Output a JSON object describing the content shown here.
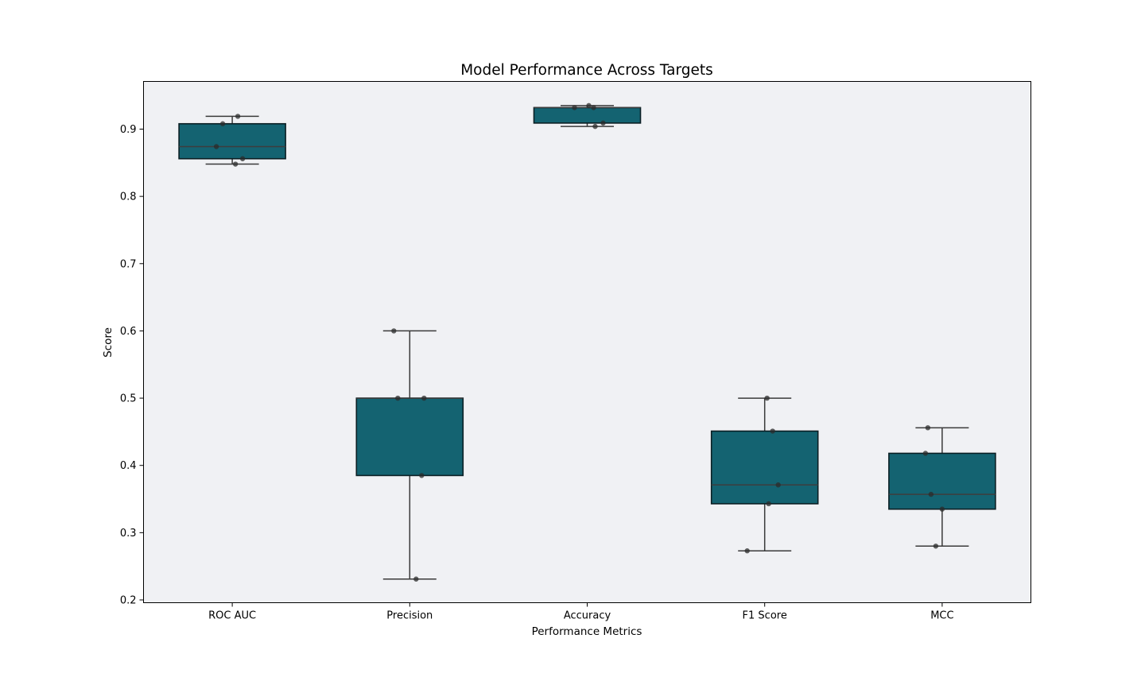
{
  "chart_data": {
    "type": "box",
    "title": "Model Performance Across Targets",
    "xlabel": "Performance Metrics",
    "ylabel": "Score",
    "ylim": [
      0.195,
      0.97
    ],
    "yticks": [
      "0.2",
      "0.3",
      "0.4",
      "0.5",
      "0.6",
      "0.7",
      "0.8",
      "0.9"
    ],
    "grid": false,
    "categories": [
      "ROC AUC",
      "Precision",
      "Accuracy",
      "F1 Score",
      "MCC"
    ],
    "boxes": [
      {
        "name": "ROC AUC",
        "whisker_low": 0.848,
        "q1": 0.856,
        "median": 0.874,
        "q3": 0.908,
        "whisker_high": 0.919,
        "points": [
          0.919,
          0.908,
          0.874,
          0.856,
          0.848
        ]
      },
      {
        "name": "Precision",
        "whisker_low": 0.231,
        "q1": 0.385,
        "median": 0.5,
        "q3": 0.5,
        "whisker_high": 0.6,
        "points": [
          0.6,
          0.5,
          0.5,
          0.385,
          0.231
        ]
      },
      {
        "name": "Accuracy",
        "whisker_low": 0.904,
        "q1": 0.909,
        "median": 0.932,
        "q3": 0.932,
        "whisker_high": 0.935,
        "points": [
          0.935,
          0.932,
          0.932,
          0.909,
          0.904
        ]
      },
      {
        "name": "F1 Score",
        "whisker_low": 0.273,
        "q1": 0.343,
        "median": 0.371,
        "q3": 0.451,
        "whisker_high": 0.5,
        "points": [
          0.5,
          0.451,
          0.371,
          0.343,
          0.273
        ]
      },
      {
        "name": "MCC",
        "whisker_low": 0.28,
        "q1": 0.335,
        "median": 0.357,
        "q3": 0.418,
        "whisker_high": 0.456,
        "points": [
          0.456,
          0.418,
          0.357,
          0.335,
          0.28
        ]
      }
    ],
    "colors": {
      "box_fill": "#146371",
      "box_edge": "#0b1f24",
      "plot_bg": "#f0f1f4",
      "point": "#2b2b2b",
      "whisker": "#3a3a3a"
    }
  }
}
